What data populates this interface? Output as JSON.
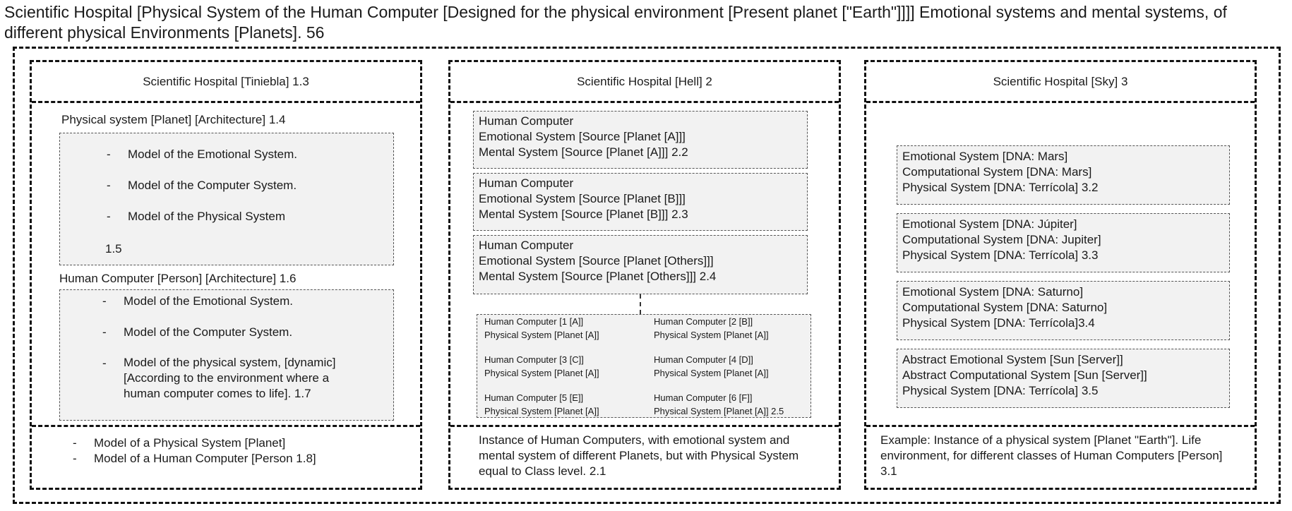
{
  "title": "Scientific Hospital [Physical System of the Human Computer [Designed for the physical environment [Present planet [\"Earth\"]]]] Emotional systems and mental systems, of different physical Environments [Planets]. 56",
  "col1": {
    "header": "Scientific Hospital [Tiniebla] 1.3",
    "physical_title": "Physical system [Planet] [Architecture] 1.4",
    "physical_items": [
      "Model of the Emotional System.",
      "Model of the Computer System.",
      "Model of the Physical System"
    ],
    "physical_num": "1.5",
    "human_title": "Human Computer [Person] [Architecture] 1.6",
    "human_items": [
      "Model of the Emotional System.",
      "Model of the Computer System.",
      "Model of the physical system, [dynamic] [According to the environment where a human computer comes to life].  1.7"
    ],
    "footer_items": [
      "Model of a Physical System [Planet]",
      "Model of a Human Computer [Person 1.8]"
    ]
  },
  "col2": {
    "header": "Scientific Hospital [Hell] 2",
    "hc_boxes": [
      {
        "l1": "Human Computer",
        "l2": "Emotional System [Source [Planet [A]]]",
        "l3": "Mental System [Source [Planet [A]]] 2.2"
      },
      {
        "l1": "Human Computer",
        "l2": "Emotional System [Source [Planet [B]]]",
        "l3": "Mental System [Source [Planet [B]]] 2.3"
      },
      {
        "l1": "Human Computer",
        "l2": "Emotional System [Source [Planet [Others]]]",
        "l3": "Mental System [Source [Planet [Others]]] 2.4"
      }
    ],
    "grid": [
      {
        "a": "Human Computer [1 [A]]",
        "b": "Physical System [Planet [A]]"
      },
      {
        "a": "Human Computer [2 [B]]",
        "b": "Physical System [Planet [A]]"
      },
      {
        "a": "Human Computer [3  [C]]",
        "b": "Physical System [Planet [A]]"
      },
      {
        "a": "Human Computer [4 [D]]",
        "b": "Physical System [Planet [A]]"
      },
      {
        "a": "Human Computer [5 [E]]",
        "b": "Physical System [Planet [A]]"
      },
      {
        "a": "Human Computer [6 [F]]",
        "b": "Physical System [Planet [A]] 2.5"
      }
    ],
    "footer": "Instance of Human Computers, with emotional system and mental system of different Planets, but with Physical System equal to Class level. 2.1"
  },
  "col3": {
    "header": "Scientific Hospital [Sky] 3",
    "boxes": [
      {
        "l1": "Emotional System [DNA: Mars]",
        "l2": "Computational System [DNA: Mars]",
        "l3": "Physical System [DNA: Terrícola] 3.2"
      },
      {
        "l1": "Emotional System [DNA: Júpiter]",
        "l2": "Computational System [DNA: Jupiter]",
        "l3": "Physical System [DNA: Terrícola] 3.3"
      },
      {
        "l1": "Emotional System [DNA: Saturno]",
        "l2": "Computational System [DNA: Saturno]",
        "l3": "Physical System [DNA: Terrícola]3.4"
      },
      {
        "l1": "Abstract Emotional System [Sun [Server]]",
        "l2": "Abstract Computational System [Sun [Server]]",
        "l3": "Physical System [DNA: Terrícola] 3.5"
      }
    ],
    "footer": "Example: Instance of a physical system [Planet \"Earth\"]. Life environment, for different classes of Human Computers [Person] 3.1"
  },
  "dash_glyph": "-"
}
